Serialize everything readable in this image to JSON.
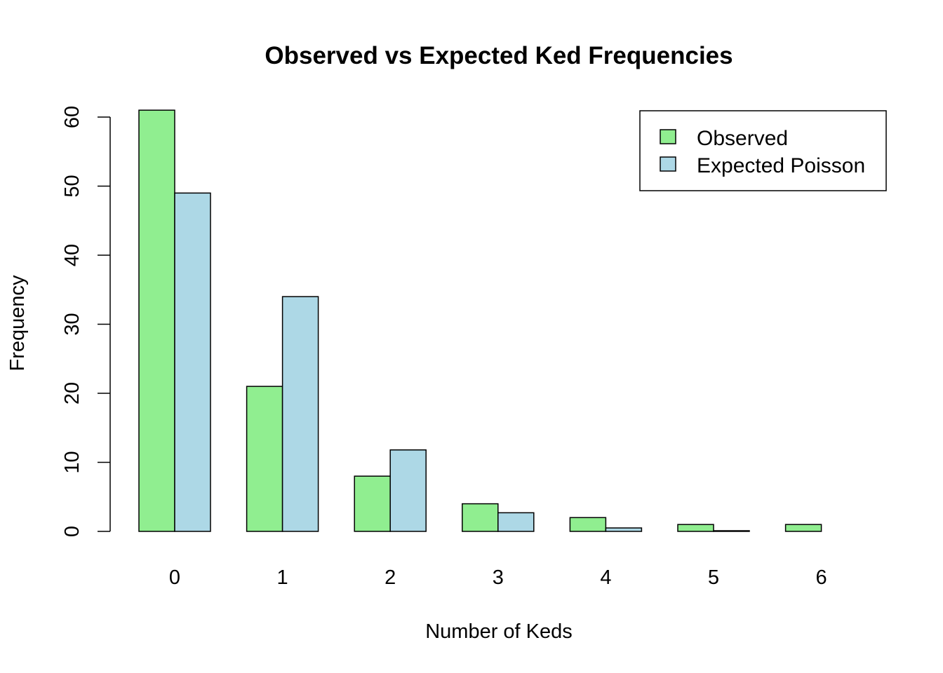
{
  "chart_data": {
    "type": "bar",
    "title": "Observed vs Expected Ked Frequencies",
    "xlabel": "Number of Keds",
    "ylabel": "Frequency",
    "categories": [
      "0",
      "1",
      "2",
      "3",
      "4",
      "5",
      "6"
    ],
    "series": [
      {
        "name": "Observed",
        "color": "#90EE90",
        "values": [
          61,
          21,
          8,
          4,
          2,
          1,
          1
        ]
      },
      {
        "name": "Expected Poisson",
        "color": "#ADD8E6",
        "values": [
          49,
          34,
          11.8,
          2.7,
          0.5,
          0.1,
          0.0
        ]
      }
    ],
    "ylim": [
      0,
      61
    ],
    "yticks": [
      0,
      10,
      20,
      30,
      40,
      50,
      60
    ],
    "grid": false,
    "legend_position": "top-right"
  }
}
